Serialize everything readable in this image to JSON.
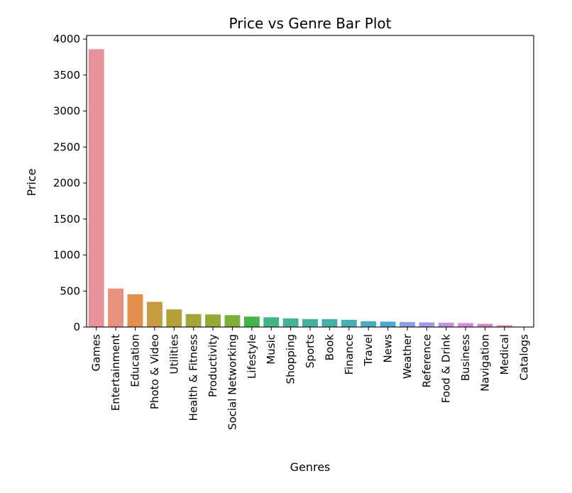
{
  "chart_data": {
    "type": "bar",
    "title": "Price vs Genre Bar Plot",
    "xlabel": "Genres",
    "ylabel": "Price",
    "ylim": [
      0,
      4050
    ],
    "y_ticks": [
      0,
      500,
      1000,
      1500,
      2000,
      2500,
      3000,
      3500,
      4000
    ],
    "grid": false,
    "categories": [
      "Games",
      "Entertainment",
      "Education",
      "Photo & Video",
      "Utilities",
      "Health & Fitness",
      "Productivity",
      "Social Networking",
      "Lifestyle",
      "Music",
      "Shopping",
      "Sports",
      "Book",
      "Finance",
      "Travel",
      "News",
      "Weather",
      "Reference",
      "Food & Drink",
      "Business",
      "Navigation",
      "Medical",
      "Catalogs"
    ],
    "values": [
      3860,
      535,
      455,
      350,
      245,
      180,
      175,
      165,
      145,
      135,
      120,
      110,
      110,
      100,
      80,
      75,
      70,
      65,
      60,
      55,
      45,
      25,
      5
    ],
    "colors": [
      "#e8919b",
      "#e8937f",
      "#e3904e",
      "#c79b3f",
      "#b3a037",
      "#a3a43a",
      "#94a938",
      "#7daf3b",
      "#42b549",
      "#43b483",
      "#44b293",
      "#45b19f",
      "#45b0aa",
      "#47afb4",
      "#48adc0",
      "#4aa8d2",
      "#8ba1e4",
      "#a699e8",
      "#c391e8",
      "#dd87e5",
      "#e684c3",
      "#e786b6",
      "#e88aa6"
    ]
  }
}
